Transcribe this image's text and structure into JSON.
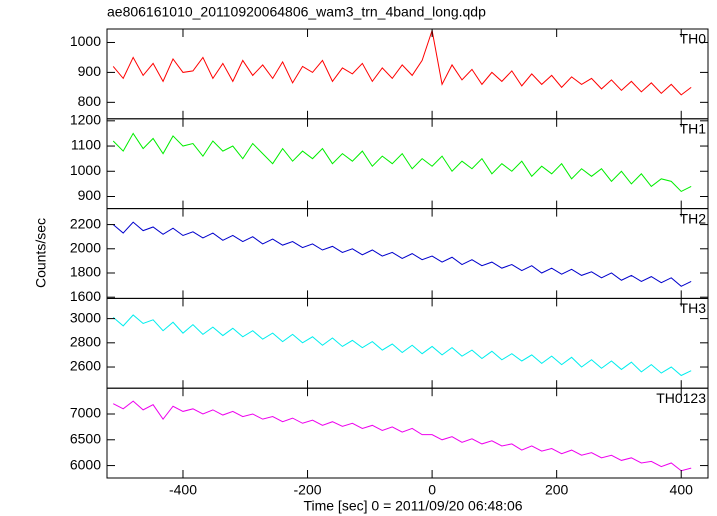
{
  "chart_data": {
    "type": "line",
    "title": "ae806161010_20110920064806_wam3_trn_4band_long.qdp",
    "x_label": "Time [sec] 0 = 2011/09/20 06:48:06",
    "y_label": "Counts/sec",
    "xlim": [
      -522,
      443
    ],
    "xticks": [
      -400,
      -200,
      0,
      200,
      400
    ],
    "x": [
      -512,
      -496,
      -480,
      -464,
      -448,
      -432,
      -416,
      -400,
      -384,
      -368,
      -352,
      -336,
      -320,
      -304,
      -288,
      -272,
      -256,
      -240,
      -224,
      -208,
      -192,
      -176,
      -160,
      -144,
      -128,
      -112,
      -96,
      -80,
      -64,
      -48,
      -32,
      -16,
      0,
      16,
      32,
      48,
      64,
      80,
      96,
      112,
      128,
      144,
      160,
      176,
      192,
      208,
      224,
      240,
      256,
      272,
      288,
      304,
      320,
      336,
      352,
      368,
      384,
      400,
      416
    ],
    "series": [
      {
        "name": "TH0",
        "color": "#ff0000",
        "ylim": [
          745,
          1045
        ],
        "yticks": [
          800,
          900,
          1000
        ],
        "values": [
          920,
          880,
          950,
          890,
          930,
          870,
          945,
          900,
          905,
          950,
          880,
          930,
          870,
          940,
          890,
          925,
          880,
          935,
          865,
          920,
          900,
          940,
          870,
          915,
          895,
          930,
          870,
          915,
          880,
          925,
          890,
          940,
          1040,
          860,
          925,
          875,
          910,
          860,
          900,
          870,
          905,
          855,
          895,
          860,
          890,
          850,
          885,
          860,
          880,
          845,
          875,
          840,
          870,
          835,
          865,
          830,
          860,
          825,
          850
        ]
      },
      {
        "name": "TH1",
        "color": "#00ee00",
        "ylim": [
          852,
          1208
        ],
        "yticks": [
          900,
          1000,
          1100,
          1200
        ],
        "values": [
          1120,
          1080,
          1150,
          1090,
          1130,
          1070,
          1140,
          1100,
          1110,
          1060,
          1120,
          1080,
          1100,
          1050,
          1110,
          1070,
          1030,
          1090,
          1040,
          1080,
          1050,
          1090,
          1030,
          1070,
          1040,
          1080,
          1020,
          1060,
          1030,
          1070,
          1010,
          1050,
          1020,
          1060,
          1000,
          1040,
          1010,
          1050,
          990,
          1030,
          1000,
          1040,
          980,
          1020,
          990,
          1030,
          970,
          1010,
          980,
          1010,
          960,
          1000,
          950,
          990,
          940,
          970,
          960,
          920,
          940
        ]
      },
      {
        "name": "TH2",
        "color": "#0000cc",
        "ylim": [
          1590,
          2332
        ],
        "yticks": [
          1600,
          1800,
          2000,
          2200
        ],
        "values": [
          2200,
          2130,
          2220,
          2150,
          2180,
          2120,
          2170,
          2110,
          2140,
          2090,
          2130,
          2070,
          2110,
          2060,
          2100,
          2040,
          2080,
          2030,
          2060,
          2010,
          2040,
          1990,
          2020,
          1970,
          2000,
          1950,
          1990,
          1940,
          1970,
          1920,
          1960,
          1910,
          1940,
          1890,
          1930,
          1870,
          1910,
          1860,
          1890,
          1840,
          1870,
          1820,
          1860,
          1800,
          1840,
          1790,
          1830,
          1780,
          1810,
          1760,
          1800,
          1740,
          1780,
          1730,
          1770,
          1720,
          1760,
          1690,
          1730
        ]
      },
      {
        "name": "TH3",
        "color": "#00eeee",
        "ylim": [
          2425,
          3167
        ],
        "yticks": [
          2600,
          2800,
          3000
        ],
        "values": [
          3010,
          2940,
          3030,
          2960,
          2990,
          2900,
          2970,
          2880,
          2950,
          2870,
          2930,
          2860,
          2920,
          2850,
          2900,
          2830,
          2880,
          2810,
          2870,
          2800,
          2850,
          2780,
          2840,
          2770,
          2820,
          2760,
          2810,
          2740,
          2790,
          2720,
          2780,
          2710,
          2770,
          2700,
          2760,
          2690,
          2740,
          2670,
          2730,
          2660,
          2710,
          2650,
          2700,
          2630,
          2690,
          2620,
          2680,
          2600,
          2660,
          2590,
          2650,
          2580,
          2640,
          2560,
          2620,
          2550,
          2600,
          2530,
          2570
        ]
      },
      {
        "name": "TH0123",
        "color": "#ee00ee",
        "ylim": [
          5759,
          7500
        ],
        "yticks": [
          6000,
          6500,
          7000
        ],
        "values": [
          7200,
          7100,
          7250,
          7080,
          7180,
          6900,
          7150,
          7050,
          7100,
          7000,
          7080,
          6980,
          7050,
          6950,
          7000,
          6900,
          6950,
          6850,
          6920,
          6820,
          6880,
          6780,
          6850,
          6760,
          6820,
          6720,
          6780,
          6680,
          6750,
          6650,
          6720,
          6600,
          6600,
          6500,
          6560,
          6450,
          6520,
          6420,
          6480,
          6380,
          6420,
          6300,
          6380,
          6280,
          6330,
          6230,
          6300,
          6200,
          6250,
          6150,
          6200,
          6100,
          6150,
          6050,
          6080,
          5980,
          6050,
          5900,
          5950
        ]
      }
    ]
  }
}
